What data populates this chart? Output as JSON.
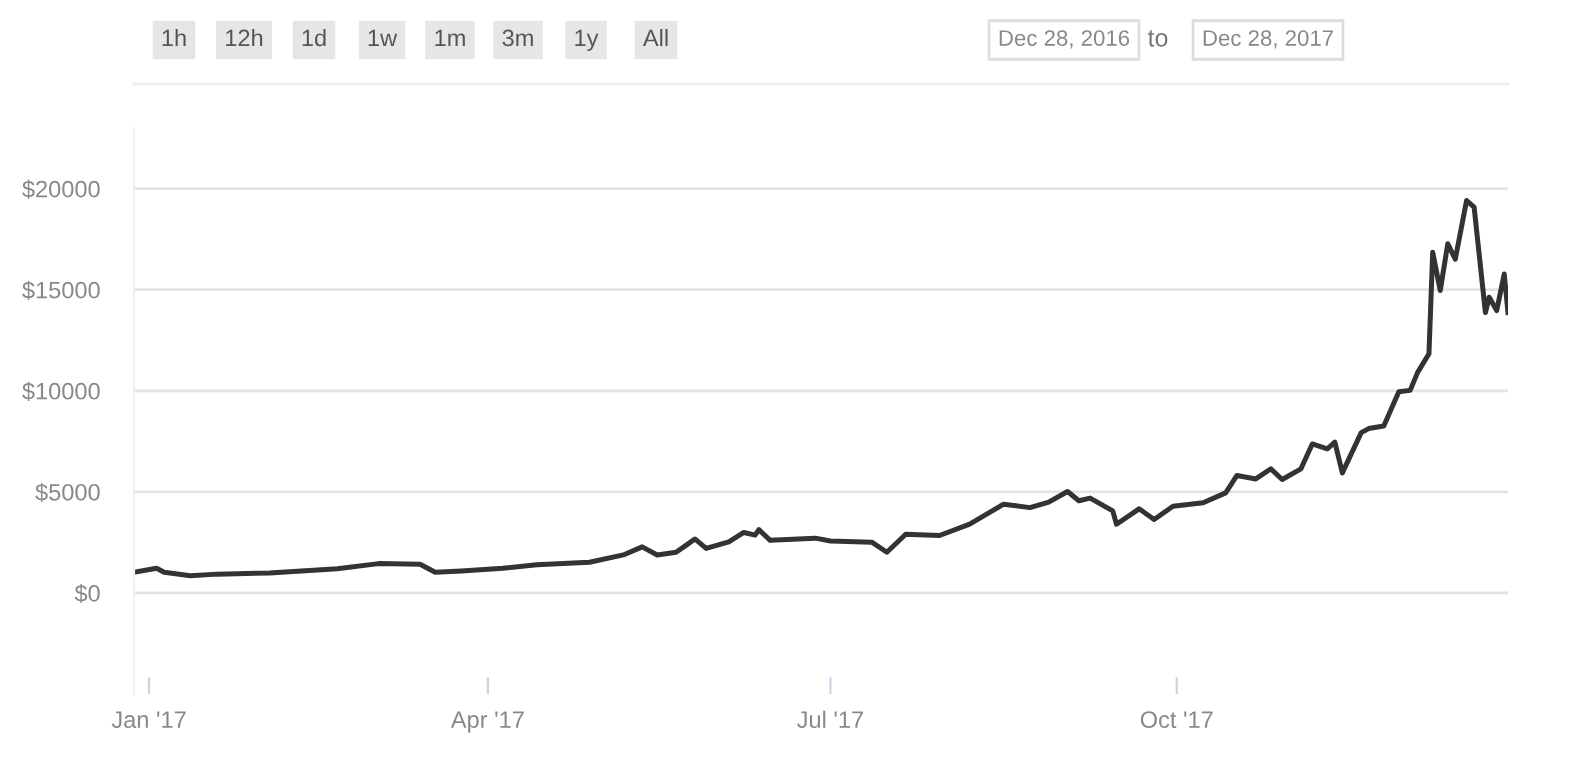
{
  "chart_data": {
    "type": "line",
    "annotations": [
      "1h",
      "12h",
      "1d",
      "1w",
      "1m",
      "3m",
      "1y",
      "All",
      "Dec 28, 2016",
      "to",
      "Dec 28, 2017"
    ],
    "series": [
      {
        "color": "#333333",
        "x": [
          "2016-12-28",
          "2017-01-03",
          "2017-01-05",
          "2017-01-12",
          "2017-01-19",
          "2017-02-02",
          "2017-02-20",
          "2017-03-03",
          "2017-03-14",
          "2017-03-18",
          "2017-03-25",
          "2017-04-05",
          "2017-04-14",
          "2017-04-28",
          "2017-05-07",
          "2017-05-12",
          "2017-05-16",
          "2017-05-21",
          "2017-05-24",
          "2017-05-26",
          "2017-05-29",
          "2017-06-04",
          "2017-06-08",
          "2017-06-11",
          "2017-06-12",
          "2017-06-15",
          "2017-06-27",
          "2017-07-01",
          "2017-07-12",
          "2017-07-16",
          "2017-07-21",
          "2017-07-30",
          "2017-08-07",
          "2017-08-16",
          "2017-08-23",
          "2017-08-28",
          "2017-09-02",
          "2017-09-05",
          "2017-09-08",
          "2017-09-14",
          "2017-09-15",
          "2017-09-21",
          "2017-09-25",
          "2017-09-30",
          "2017-10-08",
          "2017-10-14",
          "2017-10-17",
          "2017-10-22",
          "2017-10-26",
          "2017-10-29",
          "2017-11-03",
          "2017-11-06",
          "2017-11-10",
          "2017-11-12",
          "2017-11-14",
          "2017-11-19",
          "2017-11-21",
          "2017-11-25",
          "2017-11-29",
          "2017-12-02",
          "2017-12-04",
          "2017-12-07",
          "2017-12-08",
          "2017-12-10",
          "2017-12-12",
          "2017-12-14",
          "2017-12-17",
          "2017-12-19",
          "2017-12-22",
          "2017-12-23",
          "2017-12-25",
          "2017-12-27",
          "2017-12-28"
        ],
        "values": [
          1020,
          1220,
          1020,
          850,
          930,
          990,
          1200,
          1450,
          1420,
          1020,
          1090,
          1220,
          1390,
          1520,
          1880,
          2280,
          1880,
          2010,
          2400,
          2670,
          2200,
          2530,
          2990,
          2860,
          3130,
          2600,
          2710,
          2570,
          2510,
          2010,
          2900,
          2840,
          3400,
          4390,
          4220,
          4490,
          5020,
          4560,
          4690,
          4060,
          3400,
          4160,
          3630,
          4290,
          4460,
          4950,
          5810,
          5640,
          6140,
          5610,
          6140,
          7370,
          7130,
          7460,
          5940,
          7930,
          8130,
          8260,
          9950,
          10020,
          10910,
          11830,
          16850,
          14960,
          17270,
          16510,
          19410,
          19080,
          13870,
          14630,
          13970,
          15780,
          13870
        ]
      }
    ],
    "xlim": [
      "2016-12-28",
      "2017-12-28"
    ],
    "xticks": [
      {
        "value": "2017-01-01",
        "label": "Jan '17"
      },
      {
        "value": "2017-04-01",
        "label": "Apr '17"
      },
      {
        "value": "2017-07-01",
        "label": "Jul '17"
      },
      {
        "value": "2017-10-01",
        "label": "Oct '17"
      }
    ],
    "ylim": [
      -5000,
      23000
    ],
    "yticks": [
      {
        "value": 0,
        "label": "$0"
      },
      {
        "value": 5000,
        "label": "$5000"
      },
      {
        "value": 10000,
        "label": "$10000"
      },
      {
        "value": 15000,
        "label": "$15000"
      },
      {
        "value": 20000,
        "label": "$20000"
      }
    ],
    "grid": "y",
    "line_style": "solid",
    "marker": "none"
  }
}
